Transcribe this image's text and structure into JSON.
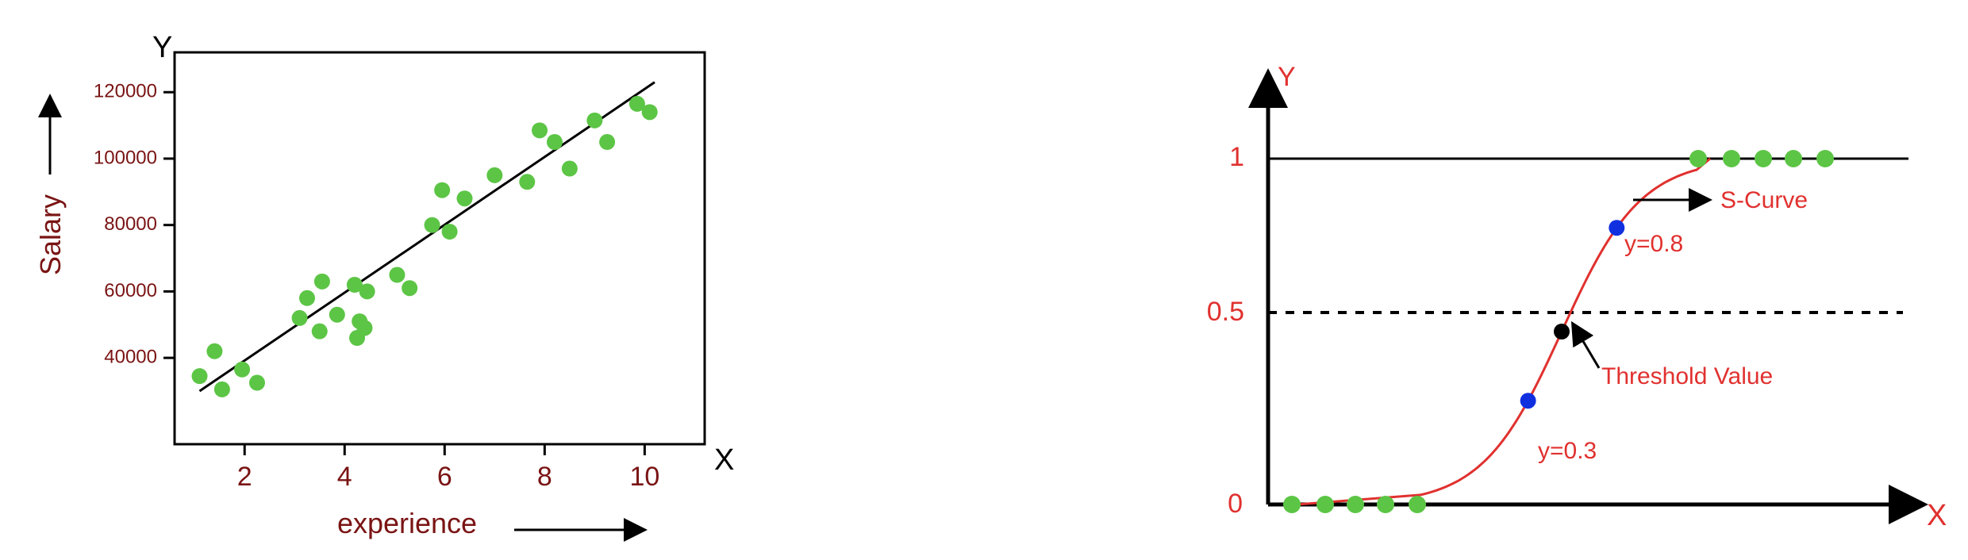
{
  "chart_data": [
    {
      "type": "scatter",
      "title": "",
      "xlabel": "experience",
      "ylabel": "Salary",
      "x_axis_letter": "X",
      "y_axis_letter": "Y",
      "xlim": [
        0.6,
        11.2
      ],
      "ylim": [
        14000,
        132000
      ],
      "x_ticks": [
        2,
        4,
        6,
        8,
        10
      ],
      "y_ticks": [
        40000,
        60000,
        80000,
        100000,
        120000
      ],
      "grid": false,
      "legend": "none",
      "point_color": "#5cc545",
      "line_color": "#000000",
      "label_color": "#7a1414",
      "regression_line": {
        "x": [
          1.1,
          10.2
        ],
        "y": [
          30000,
          123000
        ]
      },
      "points": [
        {
          "x": 1.1,
          "y": 34500
        },
        {
          "x": 1.4,
          "y": 42000
        },
        {
          "x": 1.55,
          "y": 30500
        },
        {
          "x": 1.95,
          "y": 36500
        },
        {
          "x": 2.25,
          "y": 32500
        },
        {
          "x": 3.1,
          "y": 52000
        },
        {
          "x": 3.25,
          "y": 58000
        },
        {
          "x": 3.5,
          "y": 48000
        },
        {
          "x": 3.55,
          "y": 63000
        },
        {
          "x": 3.85,
          "y": 53000
        },
        {
          "x": 4.2,
          "y": 62000
        },
        {
          "x": 4.25,
          "y": 46000
        },
        {
          "x": 4.3,
          "y": 51000
        },
        {
          "x": 4.4,
          "y": 49000
        },
        {
          "x": 4.45,
          "y": 60000
        },
        {
          "x": 5.05,
          "y": 65000
        },
        {
          "x": 5.3,
          "y": 61000
        },
        {
          "x": 5.75,
          "y": 80000
        },
        {
          "x": 5.95,
          "y": 90500
        },
        {
          "x": 6.1,
          "y": 78000
        },
        {
          "x": 6.4,
          "y": 88000
        },
        {
          "x": 7.0,
          "y": 95000
        },
        {
          "x": 7.65,
          "y": 93000
        },
        {
          "x": 7.9,
          "y": 108500
        },
        {
          "x": 8.2,
          "y": 105000
        },
        {
          "x": 8.5,
          "y": 97000
        },
        {
          "x": 9.0,
          "y": 111500
        },
        {
          "x": 9.25,
          "y": 105000
        },
        {
          "x": 9.85,
          "y": 116500
        },
        {
          "x": 10.1,
          "y": 114000
        }
      ]
    },
    {
      "type": "line",
      "title": "",
      "xlabel": "X",
      "ylabel": "Y",
      "ylim": [
        0,
        1
      ],
      "y_ticks": [
        "0",
        "0.5",
        "1"
      ],
      "grid": false,
      "legend": "none",
      "curve_color": "#e0312f",
      "label_color": "#e0312f",
      "upper_level": 1,
      "threshold_value": 0.5,
      "annotations": {
        "s_curve": "S-Curve",
        "threshold": "Threshold Value",
        "y_high": "y=0.8",
        "y_low": "y=0.3"
      },
      "marked_points": [
        {
          "label": "y=0.3",
          "y": 0.3,
          "color": "#1030e0"
        },
        {
          "label": "y=0.5",
          "y": 0.5,
          "color": "#000000"
        },
        {
          "label": "y=0.8",
          "y": 0.8,
          "color": "#1030e0"
        }
      ],
      "class_points": {
        "low_y": 0,
        "high_y": 1,
        "count_each": 5,
        "color": "#5cc545"
      }
    }
  ]
}
